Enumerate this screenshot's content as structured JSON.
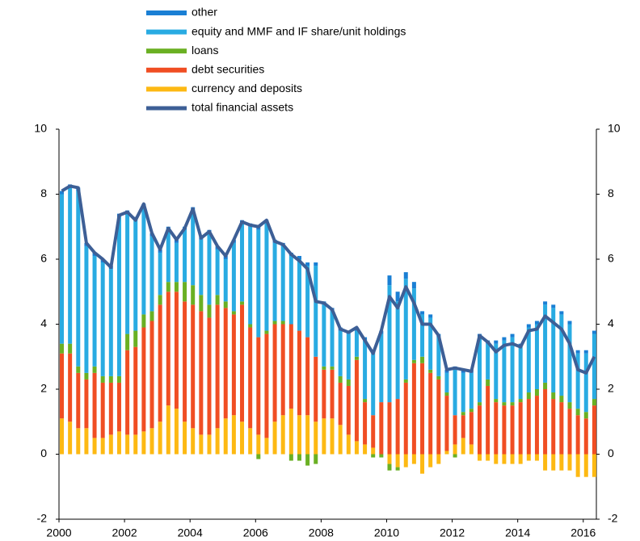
{
  "chart_data": {
    "type": "bar",
    "stacked": true,
    "x": [
      2000,
      2000.25,
      2000.5,
      2000.75,
      2001,
      2001.25,
      2001.5,
      2001.75,
      2002,
      2002.25,
      2002.5,
      2002.75,
      2003,
      2003.25,
      2003.5,
      2003.75,
      2004,
      2004.25,
      2004.5,
      2004.75,
      2005,
      2005.25,
      2005.5,
      2005.75,
      2006,
      2006.25,
      2006.5,
      2006.75,
      2007,
      2007.25,
      2007.5,
      2007.75,
      2008,
      2008.25,
      2008.5,
      2008.75,
      2009,
      2009.25,
      2009.5,
      2009.75,
      2010,
      2010.25,
      2010.5,
      2010.75,
      2011,
      2011.25,
      2011.5,
      2011.75,
      2012,
      2012.25,
      2012.5,
      2012.75,
      2013,
      2013.25,
      2013.5,
      2013.75,
      2014,
      2014.25,
      2014.5,
      2014.75,
      2015,
      2015.25,
      2015.5,
      2015.75,
      2016,
      2016.25
    ],
    "xlim": [
      2000,
      2016.4
    ],
    "xticks": [
      2000,
      2002,
      2004,
      2006,
      2008,
      2010,
      2012,
      2014,
      2016
    ],
    "ylim": [
      -2,
      10
    ],
    "yticks": [
      -2,
      0,
      2,
      4,
      6,
      8,
      10
    ],
    "y2lim": [
      -2,
      10
    ],
    "y2ticks": [
      -2,
      0,
      2,
      4,
      6,
      8,
      10
    ],
    "series": [
      {
        "name": "currency and deposits",
        "color": "#fdb913",
        "values": [
          1.1,
          1.0,
          0.8,
          0.8,
          0.5,
          0.5,
          0.6,
          0.7,
          0.6,
          0.6,
          0.7,
          0.8,
          1.0,
          1.5,
          1.4,
          1.0,
          0.8,
          0.6,
          0.6,
          0.8,
          1.1,
          1.2,
          1.0,
          0.8,
          0.6,
          0.5,
          1.0,
          1.2,
          1.4,
          1.2,
          1.2,
          1.0,
          1.1,
          1.1,
          0.9,
          0.6,
          0.4,
          0.3,
          0.2,
          0.0,
          -0.3,
          -0.4,
          -0.4,
          -0.3,
          -0.6,
          -0.4,
          -0.3,
          0.1,
          0.3,
          0.5,
          0.3,
          -0.2,
          -0.2,
          -0.3,
          -0.3,
          -0.3,
          -0.3,
          -0.2,
          -0.2,
          -0.5,
          -0.5,
          -0.5,
          -0.5,
          -0.7,
          -0.7,
          -0.7
        ]
      },
      {
        "name": "debt securities",
        "color": "#f04e23",
        "values": [
          2.0,
          2.1,
          1.7,
          1.5,
          2.0,
          1.7,
          1.6,
          1.5,
          2.6,
          2.7,
          3.2,
          3.3,
          3.6,
          3.5,
          3.6,
          3.7,
          3.8,
          3.8,
          3.6,
          3.8,
          3.4,
          3.1,
          3.6,
          3.1,
          3.0,
          3.2,
          3.0,
          2.8,
          2.6,
          2.6,
          2.4,
          2.0,
          1.5,
          1.5,
          1.3,
          1.5,
          2.5,
          1.3,
          1.0,
          1.6,
          1.6,
          1.7,
          2.2,
          2.8,
          2.8,
          2.5,
          2.3,
          1.7,
          0.9,
          0.7,
          1.0,
          1.5,
          2.1,
          1.6,
          1.5,
          1.5,
          1.6,
          1.7,
          1.8,
          2.0,
          1.7,
          1.6,
          1.4,
          1.2,
          1.1,
          1.5
        ]
      },
      {
        "name": "loans",
        "color": "#6ab023",
        "values": [
          0.3,
          0.3,
          0.2,
          0.2,
          0.2,
          0.2,
          0.2,
          0.2,
          0.5,
          0.5,
          0.4,
          0.3,
          0.3,
          0.3,
          0.3,
          0.6,
          0.6,
          0.5,
          0.4,
          0.3,
          0.2,
          0.1,
          0.1,
          0.1,
          -0.15,
          0.1,
          0.1,
          0.1,
          -0.2,
          -0.2,
          -0.35,
          -0.3,
          0.1,
          0.1,
          0.2,
          0.2,
          0.1,
          0.1,
          -0.1,
          -0.1,
          -0.2,
          -0.1,
          0.1,
          0.1,
          0.2,
          0.1,
          0.1,
          0.1,
          -0.1,
          0.1,
          0.1,
          0.1,
          0.2,
          0.1,
          0.1,
          0.1,
          0.1,
          0.2,
          0.2,
          0.2,
          0.2,
          0.2,
          0.2,
          0.2,
          0.2,
          0.2
        ]
      },
      {
        "name": "equity and MMF and IF share/unit holdings",
        "color": "#29abe2",
        "values": [
          4.6,
          4.8,
          5.4,
          3.9,
          3.4,
          3.5,
          3.3,
          4.9,
          3.7,
          3.4,
          3.3,
          2.3,
          1.3,
          1.6,
          1.2,
          1.6,
          2.3,
          1.7,
          2.2,
          1.4,
          1.3,
          2.1,
          2.4,
          3.0,
          3.3,
          3.3,
          2.4,
          2.3,
          2.1,
          2.2,
          2.2,
          2.8,
          1.9,
          1.7,
          1.4,
          1.4,
          0.8,
          1.8,
          1.9,
          2.1,
          3.6,
          3.0,
          3.1,
          2.2,
          1.3,
          1.6,
          1.2,
          0.6,
          1.4,
          1.2,
          1.1,
          2.0,
          1.1,
          1.7,
          1.9,
          2.0,
          1.6,
          2.0,
          2.0,
          2.4,
          2.6,
          2.5,
          2.4,
          1.7,
          1.8,
          2.0
        ]
      },
      {
        "name": "other",
        "color": "#1a7fd4",
        "values": [
          0.1,
          0.1,
          0.1,
          0.1,
          0.1,
          0.1,
          0.1,
          0.1,
          0.1,
          0.1,
          0.1,
          0.1,
          0.1,
          0.1,
          0.1,
          0.1,
          0.1,
          0.1,
          0.1,
          0.1,
          0.1,
          0.1,
          0.1,
          0.1,
          0.1,
          0.1,
          0.1,
          0.1,
          0.1,
          0.1,
          0.1,
          0.1,
          0.1,
          0.1,
          0.1,
          0.1,
          0.1,
          0.1,
          0.1,
          0.1,
          0.3,
          0.3,
          0.2,
          0.2,
          0.1,
          0.1,
          0.1,
          0.1,
          0.1,
          0.1,
          0.1,
          0.1,
          0.1,
          0.1,
          0.1,
          0.1,
          0.1,
          0.1,
          0.1,
          0.1,
          0.1,
          0.1,
          0.1,
          0.1,
          0.1,
          0.1
        ]
      },
      {
        "name": "total financial assets",
        "type": "line",
        "color": "#3d5f96",
        "values": [
          8.1,
          8.25,
          8.2,
          6.5,
          6.2,
          6.0,
          5.75,
          7.35,
          7.45,
          7.2,
          7.7,
          6.8,
          6.3,
          6.95,
          6.6,
          6.95,
          7.55,
          6.65,
          6.85,
          6.4,
          6.1,
          6.6,
          7.15,
          7.05,
          7.0,
          7.2,
          6.55,
          6.45,
          6.15,
          5.95,
          5.7,
          4.7,
          4.65,
          4.45,
          3.85,
          3.75,
          3.9,
          3.5,
          3.1,
          3.8,
          4.85,
          4.5,
          5.15,
          4.65,
          4.0,
          4.0,
          3.65,
          2.6,
          2.65,
          2.6,
          2.55,
          3.65,
          3.45,
          3.15,
          3.35,
          3.4,
          3.3,
          3.8,
          3.85,
          4.25,
          4.05,
          3.85,
          3.4,
          2.6,
          2.5,
          3.0
        ]
      }
    ]
  }
}
